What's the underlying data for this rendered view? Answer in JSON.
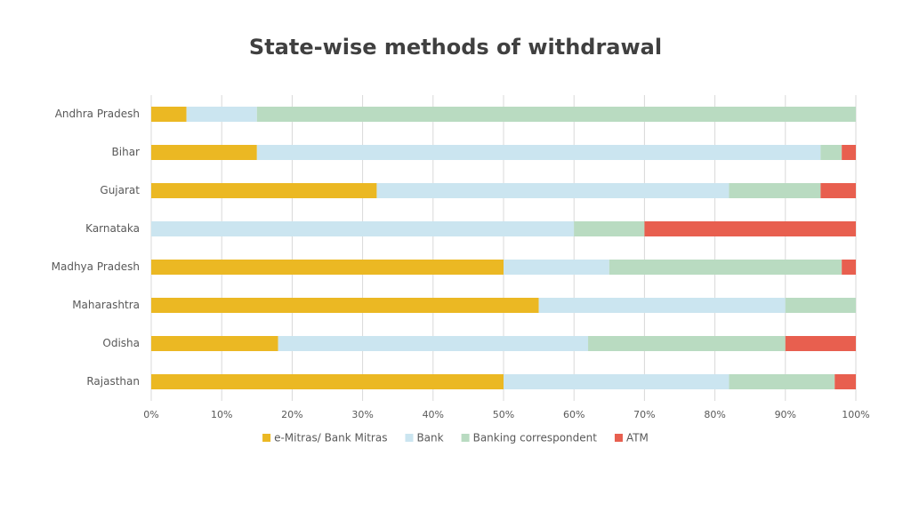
{
  "chart_data": {
    "type": "stacked-bar-horizontal",
    "title": "State-wise methods of withdrawal",
    "categories": [
      "Andhra Pradesh",
      "Bihar",
      "Gujarat",
      "Karnataka",
      "Madhya Pradesh",
      "Maharashtra",
      "Odisha",
      "Rajasthan"
    ],
    "series": [
      {
        "name": "e-Mitras/ Bank Mitras",
        "color": "#ebb823",
        "values": [
          5,
          15,
          32,
          0,
          50,
          55,
          18,
          50
        ]
      },
      {
        "name": "Bank",
        "color": "#cbe5f0",
        "values": [
          10,
          80,
          50,
          60,
          15,
          35,
          44,
          32
        ]
      },
      {
        "name": "Banking correspondent",
        "color": "#b9dbc1",
        "values": [
          85,
          3,
          13,
          10,
          33,
          10,
          28,
          15
        ]
      },
      {
        "name": "ATM",
        "color": "#e85f4f",
        "values": [
          0,
          2,
          5,
          30,
          2,
          0,
          10,
          3
        ]
      }
    ],
    "xlim": [
      0,
      100
    ],
    "xticks": [
      {
        "value": 0,
        "label": "0%"
      },
      {
        "value": 10,
        "label": "10%"
      },
      {
        "value": 20,
        "label": "20%"
      },
      {
        "value": 30,
        "label": "30%"
      },
      {
        "value": 40,
        "label": "40%"
      },
      {
        "value": 50,
        "label": "50%"
      },
      {
        "value": 60,
        "label": "60%"
      },
      {
        "value": 70,
        "label": "70%"
      },
      {
        "value": 80,
        "label": "80%"
      },
      {
        "value": 90,
        "label": "90%"
      },
      {
        "value": 100,
        "label": "100%"
      }
    ],
    "grid": true,
    "legend": "bottom"
  }
}
